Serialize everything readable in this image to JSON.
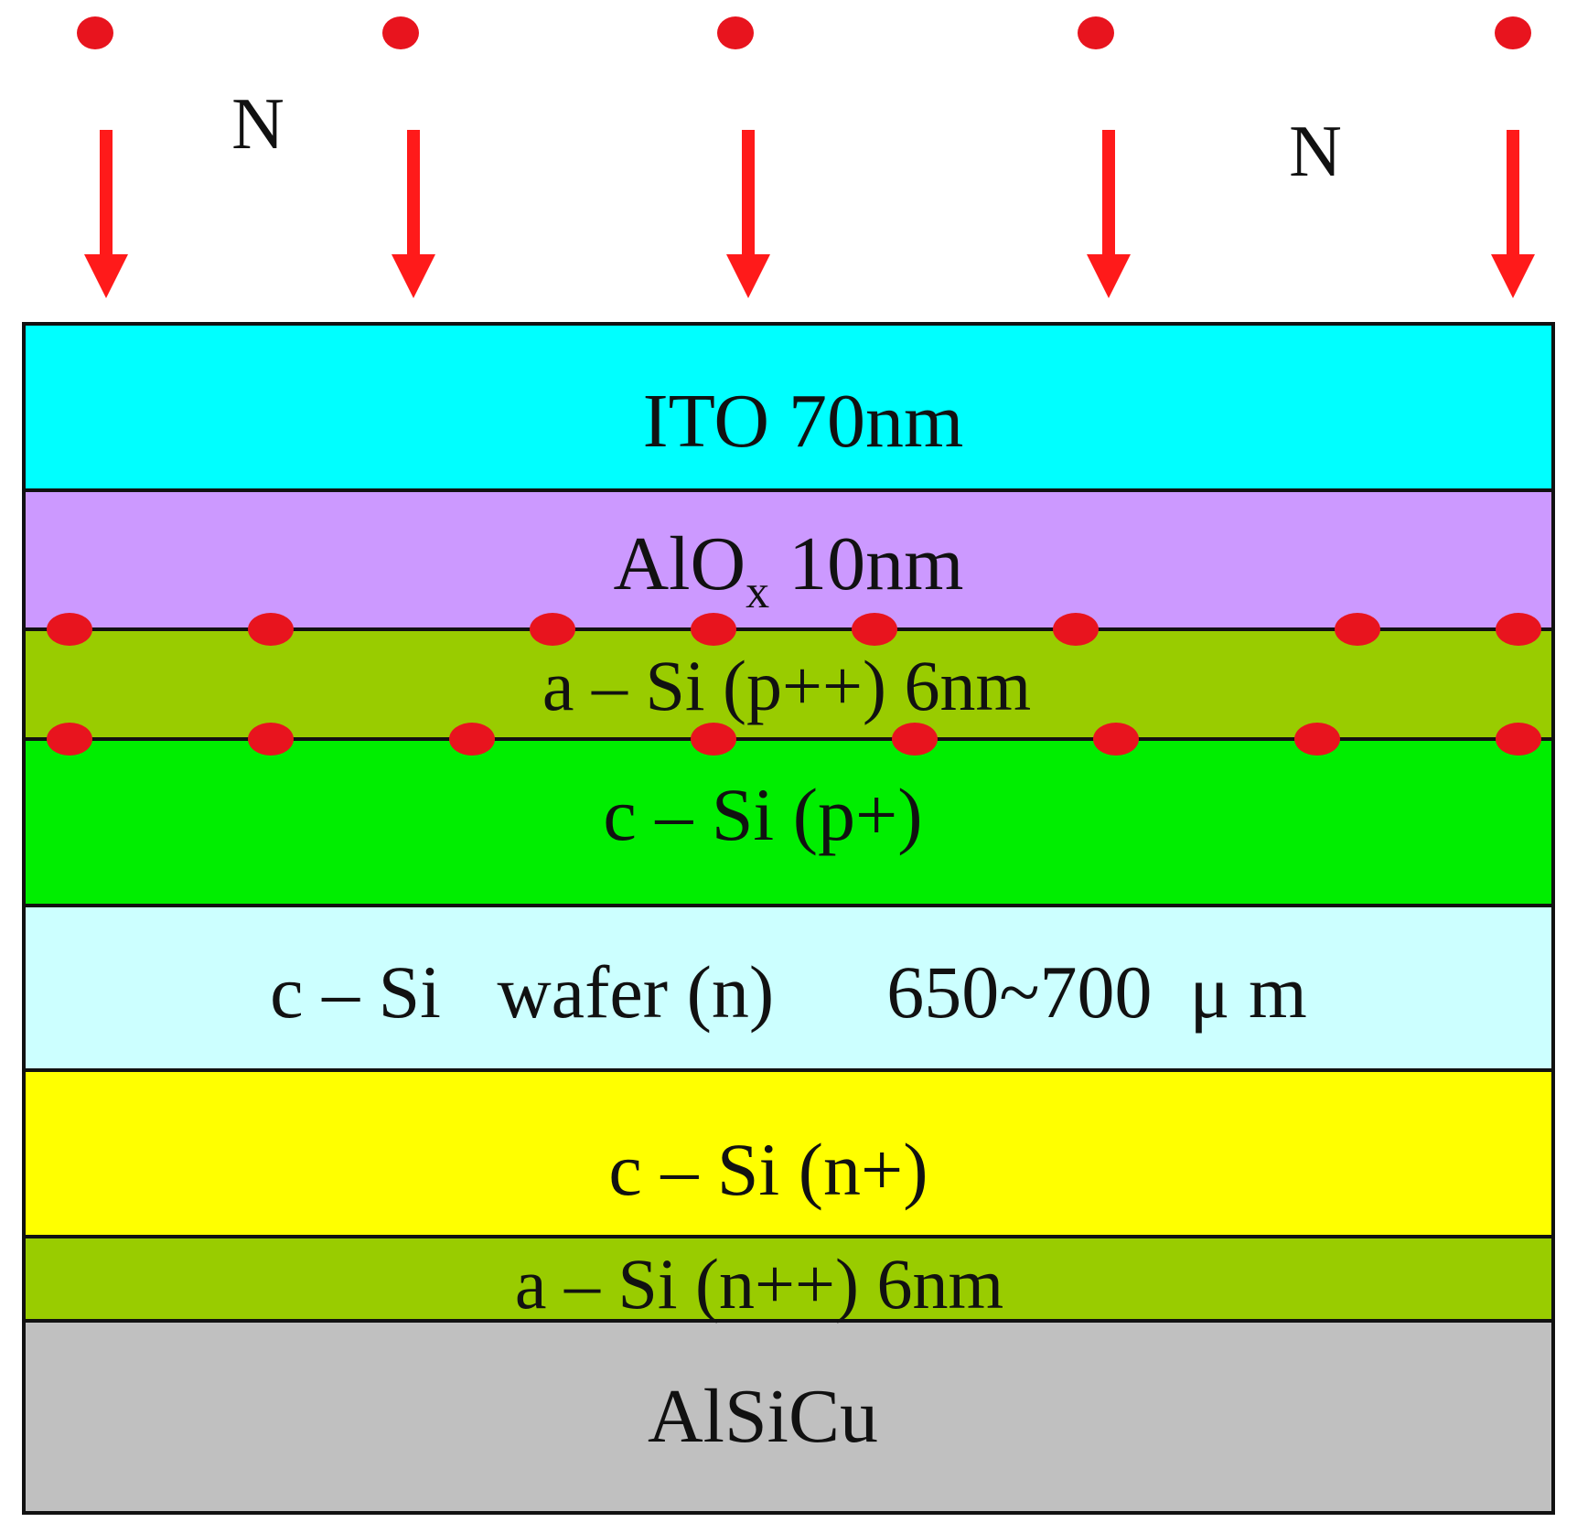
{
  "incoming_labels": [
    "N",
    "N"
  ],
  "layers": [
    {
      "id": "ito",
      "label": "ITO 70nm",
      "color": "#00FFFF"
    },
    {
      "id": "alox",
      "label_main": "AlO",
      "label_sub": "x",
      "label_tail": " 10nm",
      "color": "#CC99FF"
    },
    {
      "id": "a-si-pp",
      "label": "a – Si (p++) 6nm",
      "color": "#99CC00"
    },
    {
      "id": "c-si-p",
      "label": "c – Si (p+)",
      "color": "#00EE00"
    },
    {
      "id": "wafer",
      "label": "c – Si   wafer (n)      650~700  μ m",
      "color": "#CCFFFF"
    },
    {
      "id": "c-si-n",
      "label": "c – Si (n+)",
      "color": "#FFFF00"
    },
    {
      "id": "a-si-nn",
      "label": "a – Si (n++) 6nm",
      "color": "#99CC00"
    },
    {
      "id": "alsicu",
      "label": "AlSiCu",
      "color": "#C0C0C0"
    }
  ],
  "colors": {
    "atom": "#E8141E",
    "arrow": "#FF1A1A",
    "border": "#111111"
  }
}
